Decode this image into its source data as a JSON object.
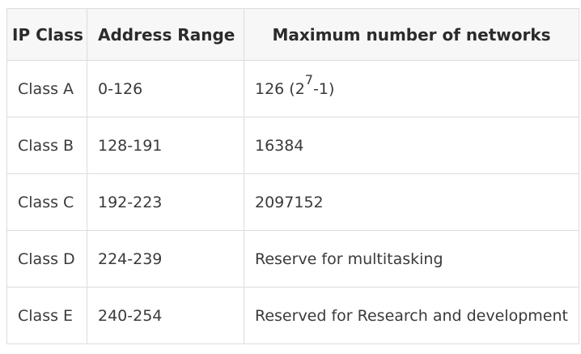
{
  "table": {
    "headers": [
      "IP Class",
      "Address Range",
      "Maximum number of networks"
    ],
    "rows": [
      {
        "ip_class": "Class A",
        "range": "0-126",
        "networks_base": "126 (2",
        "networks_exp": "7",
        "networks_tail": "-1)"
      },
      {
        "ip_class": "Class B",
        "range": "128-191",
        "networks": "16384"
      },
      {
        "ip_class": "Class C",
        "range": "192-223",
        "networks": "2097152"
      },
      {
        "ip_class": "Class D",
        "range": "224-239",
        "networks": "Reserve for multitasking"
      },
      {
        "ip_class": "Class E",
        "range": "240-254",
        "networks": "Reserved for Research and development"
      }
    ]
  }
}
